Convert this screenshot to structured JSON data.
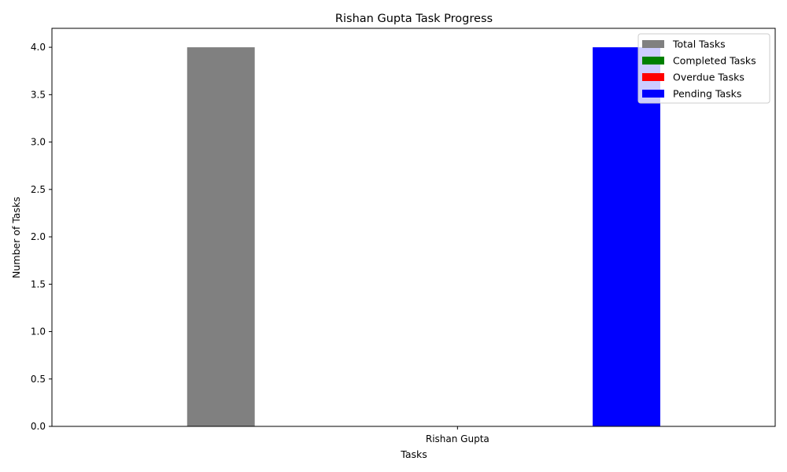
{
  "chart_data": {
    "type": "bar",
    "title": "Rishan Gupta Task Progress",
    "xlabel": "Tasks",
    "ylabel": "Number of Tasks",
    "categories": [
      "Rishan Gupta"
    ],
    "ylim": [
      0,
      4.2
    ],
    "yticks": [
      "0.0",
      "0.5",
      "1.0",
      "1.5",
      "2.0",
      "2.5",
      "3.0",
      "3.5",
      "4.0"
    ],
    "grid": false,
    "legend_position": "top-right",
    "series": [
      {
        "name": "Total Tasks",
        "values": [
          4
        ],
        "color": "#808080"
      },
      {
        "name": "Completed Tasks",
        "values": [
          0
        ],
        "color": "#008000"
      },
      {
        "name": "Overdue Tasks",
        "values": [
          0
        ],
        "color": "#ff0000"
      },
      {
        "name": "Pending Tasks",
        "values": [
          4
        ],
        "color": "#0000ff"
      }
    ]
  }
}
